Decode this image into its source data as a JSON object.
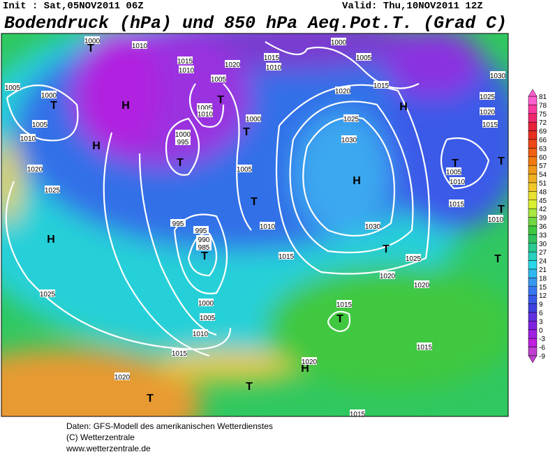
{
  "header": {
    "init": "Init : Sat,05NOV2011 06Z",
    "valid": "Valid: Thu,10NOV2011 12Z",
    "title": "Bodendruck (hPa) und 850 hPa Aeq.Pot.T. (Grad C)"
  },
  "map": {
    "labels": [
      "1005",
      "1000",
      "T",
      "1005",
      "1010",
      "1020",
      "1025",
      "H",
      "1025",
      "H",
      "H",
      "1010",
      "1000",
      "995",
      "T",
      "995",
      "995",
      "990",
      "985",
      "T",
      "1000",
      "1005",
      "1010",
      "1015",
      "1020",
      "T",
      "T",
      "H",
      "1020",
      "T",
      "1015",
      "1015",
      "1020",
      "1020",
      "1025",
      "T",
      "T",
      "1030",
      "H",
      "1030",
      "1025",
      "1020",
      "1015",
      "1005",
      "1000",
      "H",
      "T",
      "1005",
      "1010",
      "1015",
      "T",
      "1010",
      "1030",
      "1025",
      "1020",
      "1015",
      "T",
      "1020",
      "1015",
      "1010",
      "1005",
      "T",
      "1005",
      "1010",
      "T",
      "1000",
      "1005",
      "T",
      "1010",
      "1015",
      "1015",
      "1010",
      "1000",
      "T",
      "1015"
    ]
  },
  "legend": {
    "levels": [
      81,
      78,
      75,
      72,
      69,
      66,
      63,
      60,
      57,
      54,
      51,
      48,
      45,
      42,
      39,
      36,
      33,
      30,
      27,
      24,
      21,
      18,
      15,
      12,
      9,
      6,
      3,
      0,
      -3,
      -6,
      -9
    ],
    "colors": [
      "#ff5fcf",
      "#ff3aa0",
      "#f0286e",
      "#e8203a",
      "#e83020",
      "#f04818",
      "#f06010",
      "#f07a10",
      "#f09818",
      "#f0b020",
      "#f0c828",
      "#e8e030",
      "#d8f030",
      "#a8e840",
      "#70d840",
      "#40c840",
      "#30c060",
      "#28c890",
      "#28d0c0",
      "#28d8e8",
      "#30b8f0",
      "#3898f0",
      "#3878f0",
      "#3858e8",
      "#4040e0",
      "#6030e0",
      "#8020e0",
      "#a020e0",
      "#c020e0",
      "#c040d0"
    ]
  },
  "footer": {
    "lines": [
      "Daten: GFS-Modell des amerikanischen Wetterdienstes",
      "(C) Wetterzentrale",
      "www.wetterzentrale.de"
    ]
  }
}
